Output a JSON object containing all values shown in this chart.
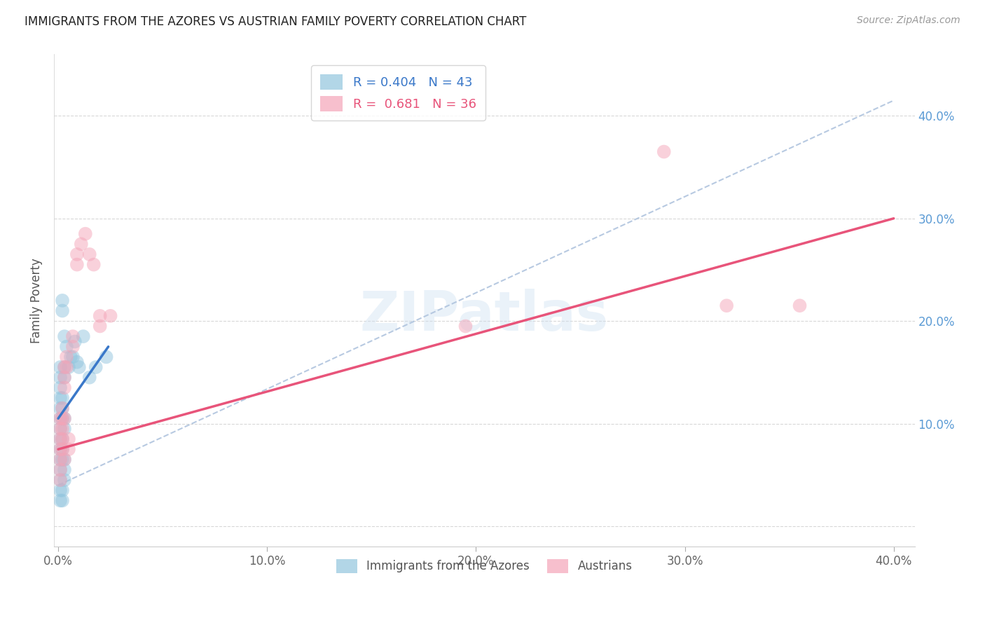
{
  "title": "IMMIGRANTS FROM THE AZORES VS AUSTRIAN FAMILY POVERTY CORRELATION CHART",
  "source": "Source: ZipAtlas.com",
  "ylabel": "Family Poverty",
  "xlim": [
    -0.002,
    0.41
  ],
  "ylim": [
    -0.02,
    0.46
  ],
  "xticks": [
    0.0,
    0.1,
    0.2,
    0.3,
    0.4
  ],
  "xtick_labels": [
    "0.0%",
    "10.0%",
    "20.0%",
    "30.0%",
    "40.0%"
  ],
  "yticks": [
    0.0,
    0.1,
    0.2,
    0.3,
    0.4
  ],
  "right_ytick_labels": [
    "",
    "10.0%",
    "20.0%",
    "30.0%",
    "40.0%"
  ],
  "legend_line1": "R = 0.404   N = 43",
  "legend_line2": "R =  0.681   N = 36",
  "blue_color": "#92c5de",
  "pink_color": "#f4a5b8",
  "blue_line_color": "#3a78c9",
  "pink_line_color": "#e8547a",
  "dashed_line_color": "#b0c4de",
  "watermark": "ZIPatlas",
  "blue_points": [
    [
      0.001,
      0.155
    ],
    [
      0.001,
      0.145
    ],
    [
      0.001,
      0.135
    ],
    [
      0.001,
      0.125
    ],
    [
      0.001,
      0.115
    ],
    [
      0.001,
      0.105
    ],
    [
      0.001,
      0.095
    ],
    [
      0.001,
      0.085
    ],
    [
      0.001,
      0.075
    ],
    [
      0.001,
      0.065
    ],
    [
      0.001,
      0.055
    ],
    [
      0.001,
      0.045
    ],
    [
      0.002,
      0.22
    ],
    [
      0.002,
      0.21
    ],
    [
      0.002,
      0.125
    ],
    [
      0.002,
      0.115
    ],
    [
      0.002,
      0.105
    ],
    [
      0.002,
      0.085
    ],
    [
      0.002,
      0.075
    ],
    [
      0.002,
      0.065
    ],
    [
      0.003,
      0.185
    ],
    [
      0.003,
      0.155
    ],
    [
      0.003,
      0.145
    ],
    [
      0.003,
      0.105
    ],
    [
      0.003,
      0.095
    ],
    [
      0.003,
      0.065
    ],
    [
      0.003,
      0.055
    ],
    [
      0.003,
      0.045
    ],
    [
      0.004,
      0.175
    ],
    [
      0.005,
      0.155
    ],
    [
      0.006,
      0.165
    ],
    [
      0.007,
      0.165
    ],
    [
      0.008,
      0.18
    ],
    [
      0.009,
      0.16
    ],
    [
      0.01,
      0.155
    ],
    [
      0.012,
      0.185
    ],
    [
      0.015,
      0.145
    ],
    [
      0.018,
      0.155
    ],
    [
      0.023,
      0.165
    ],
    [
      0.001,
      0.035
    ],
    [
      0.001,
      0.025
    ],
    [
      0.002,
      0.035
    ],
    [
      0.002,
      0.025
    ]
  ],
  "pink_points": [
    [
      0.001,
      0.105
    ],
    [
      0.001,
      0.095
    ],
    [
      0.001,
      0.085
    ],
    [
      0.001,
      0.075
    ],
    [
      0.001,
      0.065
    ],
    [
      0.001,
      0.055
    ],
    [
      0.002,
      0.115
    ],
    [
      0.002,
      0.105
    ],
    [
      0.002,
      0.095
    ],
    [
      0.002,
      0.085
    ],
    [
      0.002,
      0.075
    ],
    [
      0.003,
      0.155
    ],
    [
      0.003,
      0.145
    ],
    [
      0.003,
      0.135
    ],
    [
      0.003,
      0.105
    ],
    [
      0.003,
      0.065
    ],
    [
      0.004,
      0.165
    ],
    [
      0.004,
      0.155
    ],
    [
      0.005,
      0.085
    ],
    [
      0.005,
      0.075
    ],
    [
      0.007,
      0.185
    ],
    [
      0.007,
      0.175
    ],
    [
      0.009,
      0.265
    ],
    [
      0.009,
      0.255
    ],
    [
      0.011,
      0.275
    ],
    [
      0.013,
      0.285
    ],
    [
      0.015,
      0.265
    ],
    [
      0.017,
      0.255
    ],
    [
      0.02,
      0.205
    ],
    [
      0.02,
      0.195
    ],
    [
      0.025,
      0.205
    ],
    [
      0.195,
      0.195
    ],
    [
      0.29,
      0.365
    ],
    [
      0.32,
      0.215
    ],
    [
      0.355,
      0.215
    ],
    [
      0.001,
      0.045
    ]
  ],
  "blue_trendline": [
    [
      0.0,
      0.105
    ],
    [
      0.024,
      0.175
    ]
  ],
  "pink_trendline": [
    [
      0.0,
      0.075
    ],
    [
      0.4,
      0.3
    ]
  ],
  "dashed_trendline": [
    [
      0.0,
      0.04
    ],
    [
      0.4,
      0.415
    ]
  ]
}
